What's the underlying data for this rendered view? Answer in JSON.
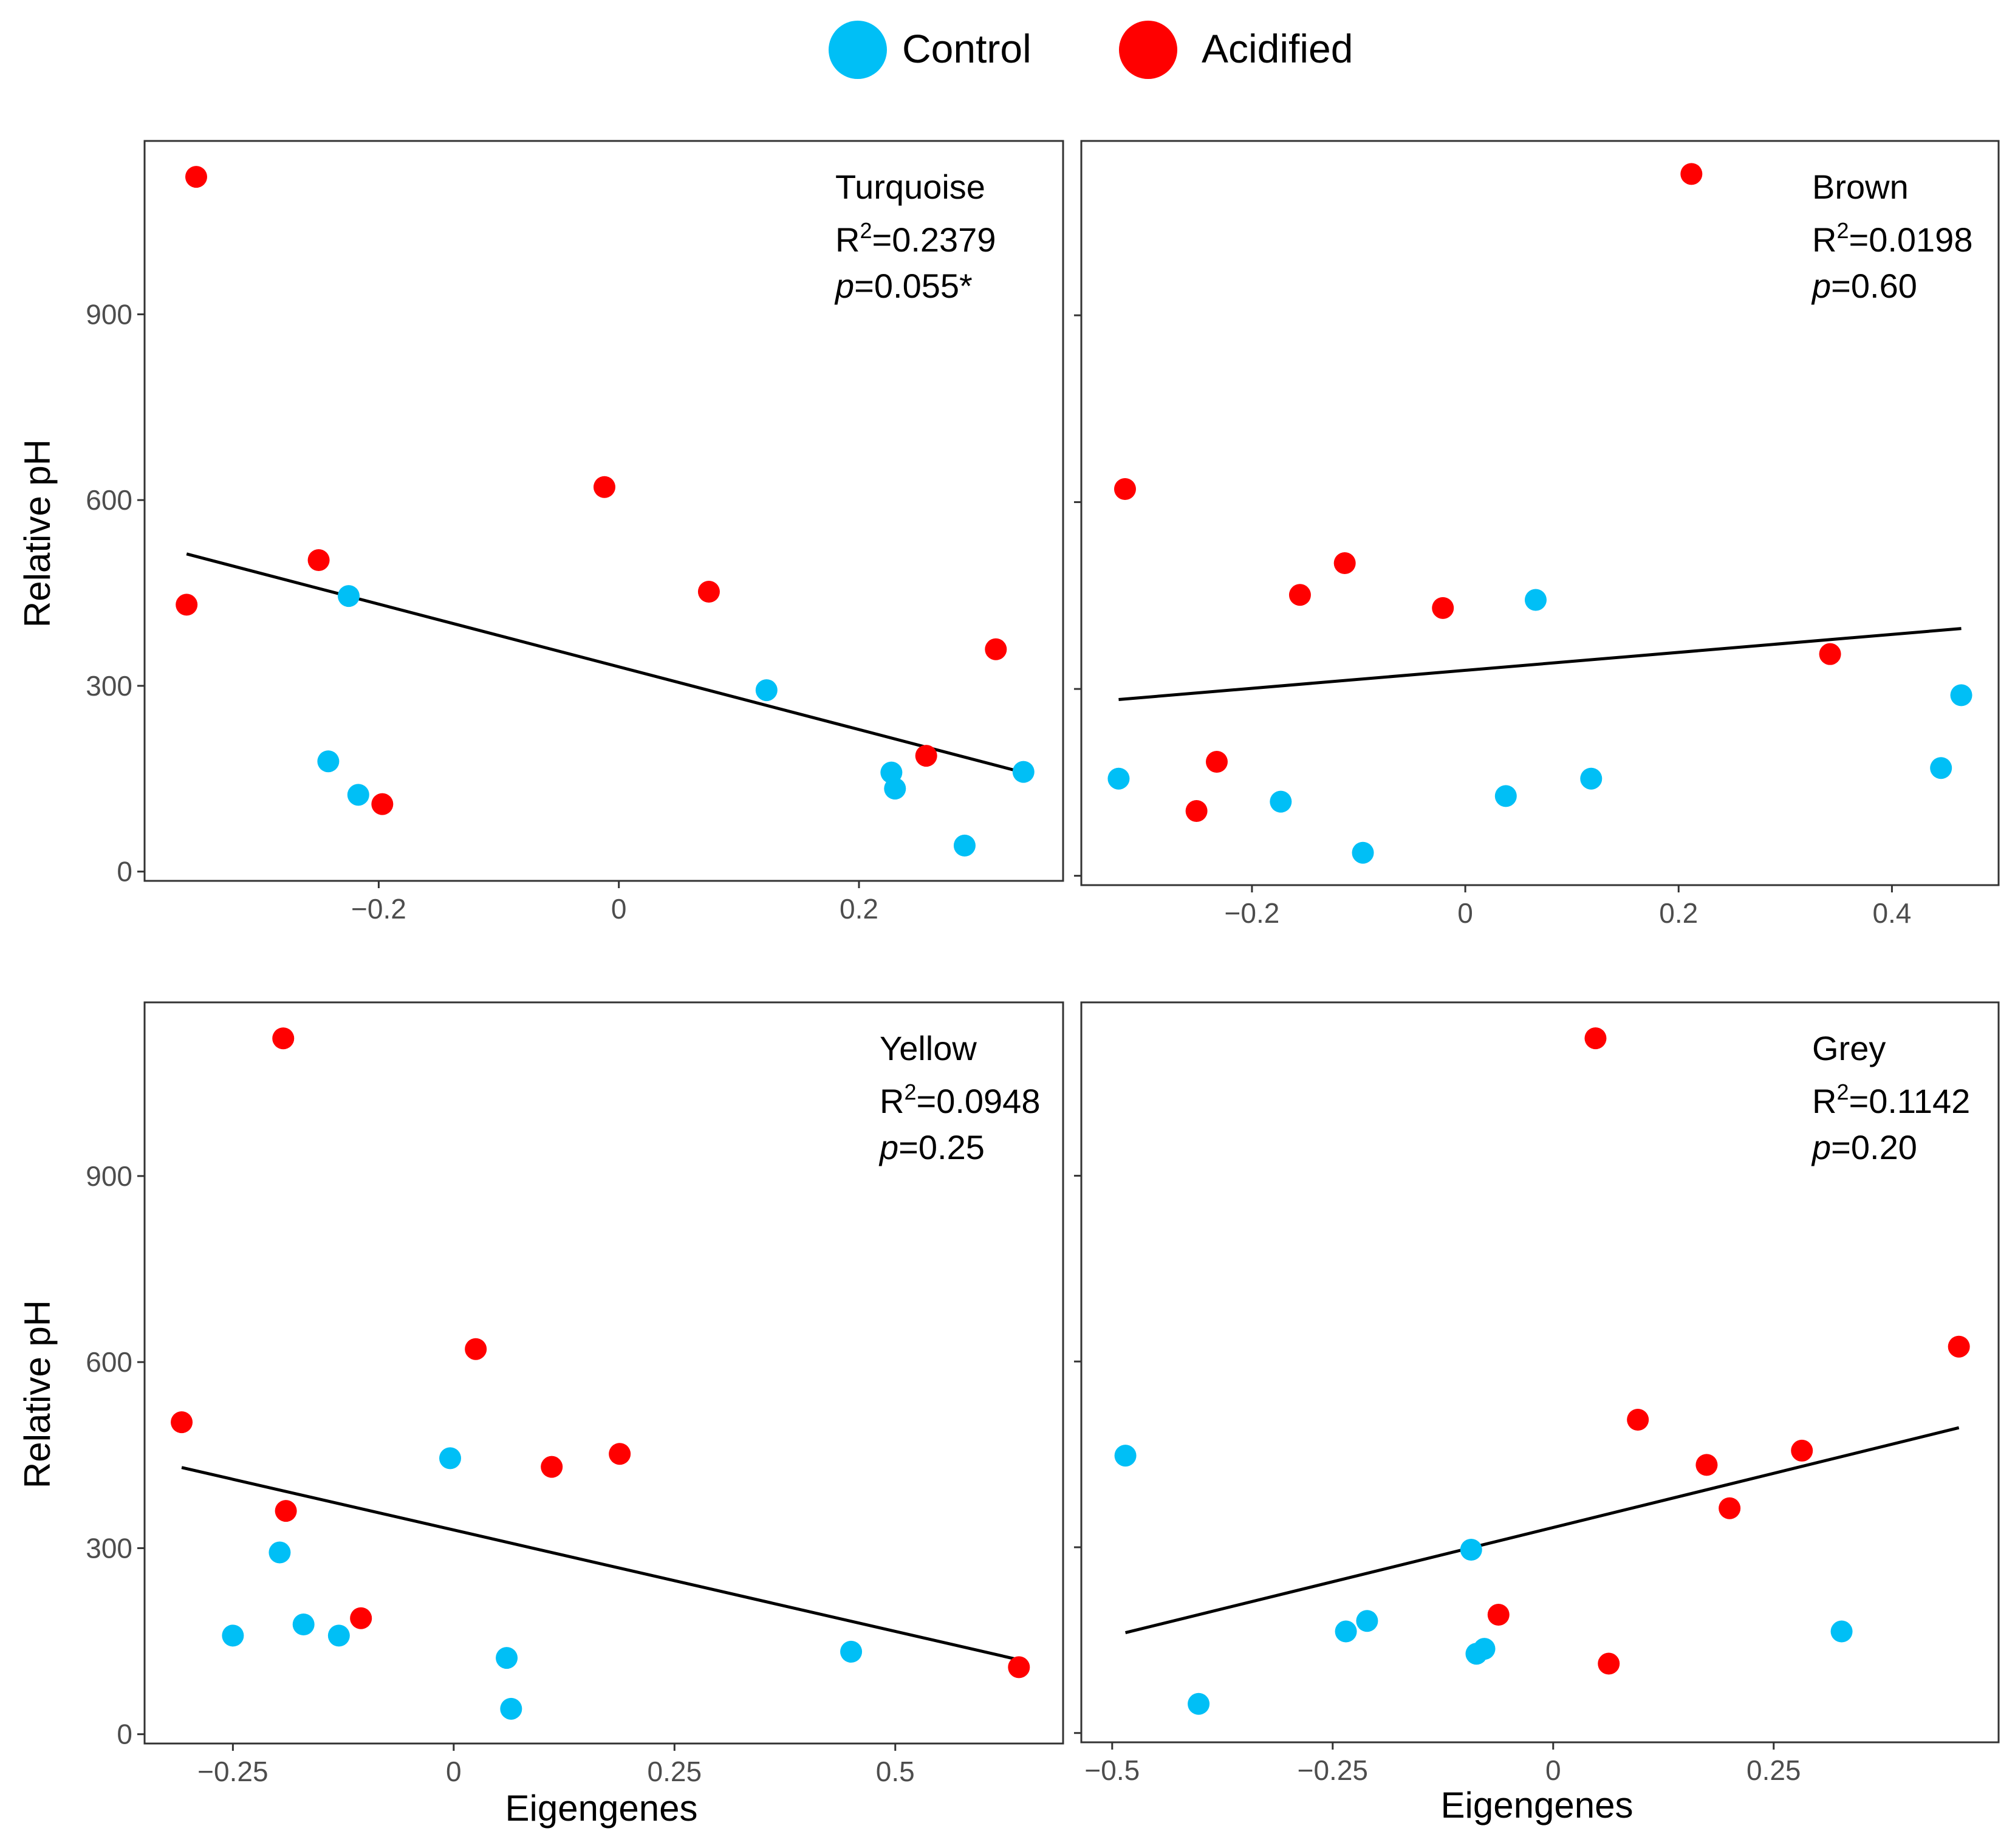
{
  "chart_data": {
    "legend": [
      {
        "label": "Control",
        "color": "#00BFF6"
      },
      {
        "label": "Acidified",
        "color": "#FF0000"
      }
    ],
    "ylabel": "Relative pH",
    "xlabel": "Eigengenes",
    "panels": [
      {
        "type": "scatter",
        "name": "Turquoise",
        "r2_label": "R",
        "r2_sup": "2",
        "r2_value": "=0.2379",
        "p_label": "p",
        "p_value": "=0.055*",
        "xlim": [
          -0.395,
          0.37
        ],
        "ylim": [
          -15,
          1180
        ],
        "xticks": [
          -0.2,
          0,
          0.2
        ],
        "xtick_labels": [
          "−0.2",
          "0",
          "0.2"
        ],
        "yticks": [
          0,
          300,
          600,
          900
        ],
        "ytick_labels": [
          "0",
          "300",
          "600",
          "900"
        ],
        "fit": {
          "x": [
            -0.36,
            0.337
          ],
          "y": [
            513,
            160
          ]
        },
        "control": [
          {
            "x": -0.225,
            "y": 445
          },
          {
            "x": -0.242,
            "y": 178
          },
          {
            "x": -0.217,
            "y": 124
          },
          {
            "x": 0.123,
            "y": 293
          },
          {
            "x": 0.227,
            "y": 160
          },
          {
            "x": 0.23,
            "y": 134
          },
          {
            "x": 0.288,
            "y": 42
          },
          {
            "x": 0.337,
            "y": 161
          }
        ],
        "acidified": [
          {
            "x": -0.352,
            "y": 1122
          },
          {
            "x": -0.36,
            "y": 431
          },
          {
            "x": -0.25,
            "y": 503
          },
          {
            "x": -0.197,
            "y": 109
          },
          {
            "x": -0.012,
            "y": 621
          },
          {
            "x": 0.075,
            "y": 452
          },
          {
            "x": 0.256,
            "y": 187
          },
          {
            "x": 0.314,
            "y": 359
          }
        ]
      },
      {
        "type": "scatter",
        "name": "Brown",
        "r2_label": "R",
        "r2_sup": "2",
        "r2_value": "=0.0198",
        "p_label": "p",
        "p_value": "=0.60",
        "xlim": [
          -0.36,
          0.5
        ],
        "ylim": [
          -15,
          1180
        ],
        "xticks": [
          -0.2,
          0,
          0.2,
          0.4
        ],
        "xtick_labels": [
          "−0.2",
          "0",
          "0.2",
          "0.4"
        ],
        "yticks": [
          0,
          300,
          600,
          900
        ],
        "ytick_labels": [
          "",
          "",
          "",
          ""
        ],
        "fit": {
          "x": [
            -0.325,
            0.465
          ],
          "y": [
            283,
            397
          ]
        },
        "control": [
          {
            "x": -0.325,
            "y": 156
          },
          {
            "x": -0.173,
            "y": 119
          },
          {
            "x": -0.096,
            "y": 37
          },
          {
            "x": 0.038,
            "y": 128
          },
          {
            "x": 0.066,
            "y": 443
          },
          {
            "x": 0.118,
            "y": 156
          },
          {
            "x": 0.446,
            "y": 173
          },
          {
            "x": 0.465,
            "y": 290
          }
        ],
        "acidified": [
          {
            "x": -0.319,
            "y": 621
          },
          {
            "x": -0.252,
            "y": 104
          },
          {
            "x": -0.233,
            "y": 183
          },
          {
            "x": -0.155,
            "y": 451
          },
          {
            "x": -0.113,
            "y": 502
          },
          {
            "x": -0.021,
            "y": 430
          },
          {
            "x": 0.212,
            "y": 1127
          },
          {
            "x": 0.342,
            "y": 356
          }
        ]
      },
      {
        "type": "scatter",
        "name": "Yellow",
        "r2_label": "R",
        "r2_sup": "2",
        "r2_value": "=0.0948",
        "p_label": "p",
        "p_value": "=0.25",
        "xlim": [
          -0.35,
          0.69
        ],
        "ylim": [
          -15,
          1180
        ],
        "xticks": [
          -0.25,
          0,
          0.25,
          0.5
        ],
        "xtick_labels": [
          "−0.25",
          "0",
          "0.25",
          "0.5"
        ],
        "yticks": [
          0,
          300,
          600,
          900
        ],
        "ytick_labels": [
          "0",
          "300",
          "600",
          "900"
        ],
        "fit": {
          "x": [
            -0.308,
            0.64
          ],
          "y": [
            430,
            120
          ]
        },
        "control": [
          {
            "x": -0.25,
            "y": 159
          },
          {
            "x": -0.197,
            "y": 293
          },
          {
            "x": -0.17,
            "y": 177
          },
          {
            "x": -0.13,
            "y": 159
          },
          {
            "x": -0.004,
            "y": 445
          },
          {
            "x": 0.06,
            "y": 123
          },
          {
            "x": 0.065,
            "y": 41
          },
          {
            "x": 0.45,
            "y": 133
          }
        ],
        "acidified": [
          {
            "x": -0.308,
            "y": 503
          },
          {
            "x": -0.193,
            "y": 1122
          },
          {
            "x": -0.19,
            "y": 360
          },
          {
            "x": -0.105,
            "y": 187
          },
          {
            "x": 0.025,
            "y": 621
          },
          {
            "x": 0.111,
            "y": 431
          },
          {
            "x": 0.188,
            "y": 452
          },
          {
            "x": 0.64,
            "y": 108
          }
        ]
      },
      {
        "type": "scatter",
        "name": "Grey",
        "r2_label": "R",
        "r2_sup": "2",
        "r2_value": "=0.1142",
        "p_label": "p",
        "p_value": "=0.20",
        "xlim": [
          -0.535,
          0.505
        ],
        "ylim": [
          -15,
          1180
        ],
        "xticks": [
          -0.5,
          -0.25,
          0,
          0.25
        ],
        "xtick_labels": [
          "−0.5",
          "−0.25",
          "0",
          "0.25"
        ],
        "yticks": [
          0,
          300,
          600,
          900
        ],
        "ytick_labels": [
          "",
          "",
          "",
          ""
        ],
        "fit": {
          "x": [
            -0.485,
            0.46
          ],
          "y": [
            162,
            493
          ]
        },
        "control": [
          {
            "x": -0.485,
            "y": 448
          },
          {
            "x": -0.402,
            "y": 47
          },
          {
            "x": -0.235,
            "y": 164
          },
          {
            "x": -0.211,
            "y": 181
          },
          {
            "x": -0.093,
            "y": 296
          },
          {
            "x": -0.087,
            "y": 128
          },
          {
            "x": -0.078,
            "y": 136
          },
          {
            "x": 0.327,
            "y": 164
          }
        ],
        "acidified": [
          {
            "x": -0.062,
            "y": 191
          },
          {
            "x": 0.048,
            "y": 1122
          },
          {
            "x": 0.063,
            "y": 112
          },
          {
            "x": 0.096,
            "y": 506
          },
          {
            "x": 0.174,
            "y": 433
          },
          {
            "x": 0.2,
            "y": 363
          },
          {
            "x": 0.282,
            "y": 456
          },
          {
            "x": 0.46,
            "y": 624
          }
        ]
      }
    ]
  }
}
